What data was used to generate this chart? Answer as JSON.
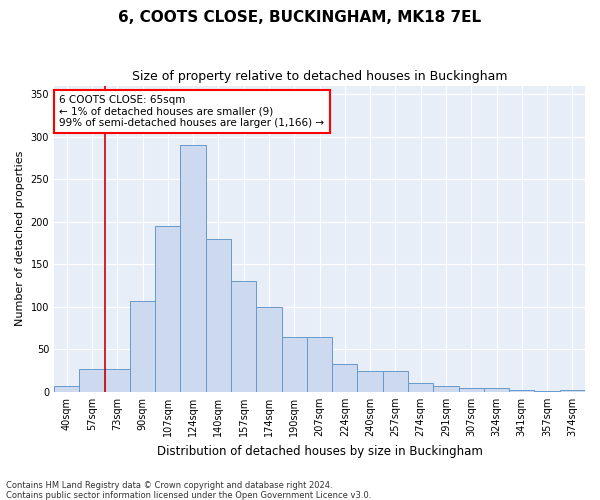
{
  "title": "6, COOTS CLOSE, BUCKINGHAM, MK18 7EL",
  "subtitle": "Size of property relative to detached houses in Buckingham",
  "xlabel": "Distribution of detached houses by size in Buckingham",
  "ylabel": "Number of detached properties",
  "categories": [
    "40sqm",
    "57sqm",
    "73sqm",
    "90sqm",
    "107sqm",
    "124sqm",
    "140sqm",
    "157sqm",
    "174sqm",
    "190sqm",
    "207sqm",
    "224sqm",
    "240sqm",
    "257sqm",
    "274sqm",
    "291sqm",
    "307sqm",
    "324sqm",
    "341sqm",
    "357sqm",
    "374sqm"
  ],
  "values": [
    7,
    27,
    27,
    107,
    195,
    290,
    180,
    130,
    100,
    65,
    65,
    33,
    25,
    25,
    10,
    7,
    5,
    5,
    2,
    1,
    2
  ],
  "bar_color": "#ccd9ee",
  "bar_edge_color": "#6699cc",
  "background_color": "#e8eef8",
  "grid_color": "#ffffff",
  "annotation_box_text": "6 COOTS CLOSE: 65sqm\n← 1% of detached houses are smaller (9)\n99% of semi-detached houses are larger (1,166) →",
  "vline_x_index": 1.5,
  "vline_color": "#cc0000",
  "ylim": [
    0,
    360
  ],
  "yticks": [
    0,
    50,
    100,
    150,
    200,
    250,
    300,
    350
  ],
  "footnote1": "Contains HM Land Registry data © Crown copyright and database right 2024.",
  "footnote2": "Contains public sector information licensed under the Open Government Licence v3.0.",
  "title_fontsize": 11,
  "subtitle_fontsize": 9,
  "xlabel_fontsize": 8.5,
  "ylabel_fontsize": 8,
  "tick_fontsize": 7,
  "annot_fontsize": 7.5
}
